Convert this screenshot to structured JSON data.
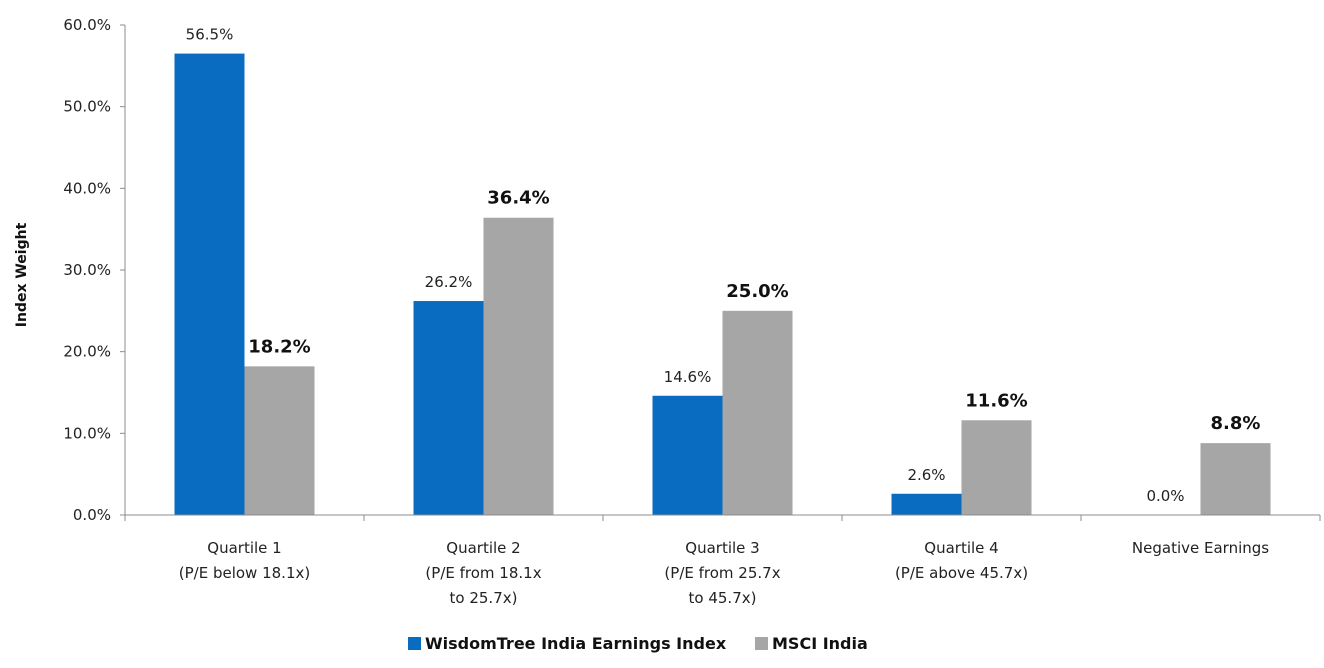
{
  "chart_data": {
    "type": "bar",
    "ylabel": "Index Weight",
    "xlabel": "",
    "ylim": [
      0,
      60
    ],
    "y_ticks": [
      "0.0%",
      "10.0%",
      "20.0%",
      "30.0%",
      "40.0%",
      "50.0%",
      "60.0%"
    ],
    "y_tick_values": [
      0,
      10,
      20,
      30,
      40,
      50,
      60
    ],
    "grid": false,
    "legend_position": "bottom",
    "categories": [
      [
        "Quartile 1",
        "(P/E below 18.1x)"
      ],
      [
        "Quartile 2",
        "(P/E from 18.1x",
        "to 25.7x)"
      ],
      [
        "Quartile 3",
        "(P/E from 25.7x",
        "to 45.7x)"
      ],
      [
        "Quartile 4",
        "(P/E above 45.7x)"
      ],
      [
        "Negative Earnings"
      ]
    ],
    "series": [
      {
        "name": "WisdomTree India Earnings Index",
        "color": "#0a6cc0",
        "values": [
          56.5,
          26.2,
          14.6,
          2.6,
          0.0
        ],
        "labels": [
          "56.5%",
          "26.2%",
          "14.6%",
          "2.6%",
          "0.0%"
        ]
      },
      {
        "name": "MSCI India",
        "color": "#a6a6a6",
        "values": [
          18.2,
          36.4,
          25.0,
          11.6,
          8.8
        ],
        "labels": [
          "18.2%",
          "36.4%",
          "25.0%",
          "11.6%",
          "8.8%"
        ]
      }
    ]
  }
}
